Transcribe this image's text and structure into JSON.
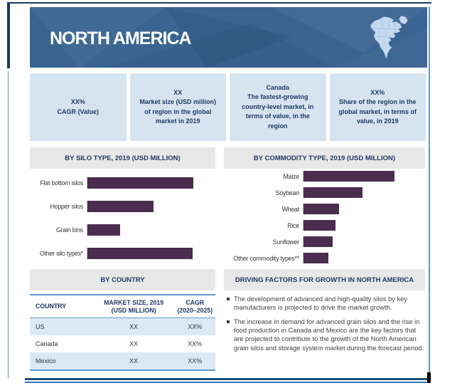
{
  "header": {
    "title": "NORTH AMERICA",
    "map_icon": "north-america-map"
  },
  "info_boxes": [
    {
      "line1": "XX%",
      "line2": "CAGR (Value)"
    },
    {
      "line1": "XX",
      "line2": "Market size (USD million) of region in the global market in 2019"
    },
    {
      "line1": "Canada",
      "line2": "The fastest-growing country-level market, in terms of value, in the region"
    },
    {
      "line1": "XX%",
      "line2": "Share of the region in the global market, in terms of value, in 2019"
    }
  ],
  "chart_data": [
    {
      "type": "bar",
      "orientation": "horizontal",
      "title": "BY SILO TYPE, 2019 (USD MILLION)",
      "categories": [
        "Flat bottom silos",
        "Hopper silos",
        "Grain bins",
        "Other silo types*"
      ],
      "values": [
        100,
        62,
        31,
        99
      ],
      "values_note": "actual values masked as XX in source; values are relative bar lengths (max = 100)",
      "bar_color": "#4A2D4F",
      "max_bar_pct": 83,
      "legend": "none",
      "grid": "off"
    },
    {
      "type": "bar",
      "orientation": "horizontal",
      "title": "BY COMMODITY TYPE, 2019 (USD MILLION)",
      "categories": [
        "Maize",
        "Soybean",
        "Wheat",
        "Rice",
        "Sunflower",
        "Other commodity types**"
      ],
      "values": [
        100,
        65,
        39,
        35,
        32,
        27
      ],
      "values_note": "actual values masked as XX in source; values are relative bar lengths (max = 100)",
      "bar_color": "#4A2D4F",
      "max_bar_pct": 75,
      "legend": "none",
      "grid": "off"
    }
  ],
  "country_section": {
    "title": "BY COUNTRY",
    "table": {
      "columns": [
        {
          "line1": "COUNTRY",
          "line2": ""
        },
        {
          "line1": "MARKET SIZE, 2019",
          "line2": "(USD MILLION)"
        },
        {
          "line1": "CAGR",
          "line2": "(2020–2025)"
        }
      ],
      "rows": [
        {
          "country": "US",
          "market_size": "XX",
          "cagr": "XX%"
        },
        {
          "country": "Canada",
          "market_size": "XX",
          "cagr": "XX%"
        },
        {
          "country": "Mexico",
          "market_size": "XX",
          "cagr": "XX%"
        }
      ]
    }
  },
  "driving_factors": {
    "title": "DRIVING FACTORS FOR GROWTH IN NORTH AMERICA",
    "bullets": [
      "The development of advanced and high-quality silos by key manufacturers is projected to drive the market growth.",
      "The increase in demand for advanced grain silos and the rise in food production in Canada and Mexico are the key factors that are projected to contribute to the growth of the North American grain silos and storage system market during the forecast period."
    ]
  },
  "colors": {
    "banner_blue": "#3A6491",
    "accent_navy": "#1F3864",
    "bar_purple": "#4A2D4F",
    "info_box_bg": "#D6E4F0",
    "section_header_bg": "#E8E8E8",
    "table_rule_blue": "#5B9BD5",
    "row_alt_bg": "#DCE9F5",
    "map_fill": "#C3D8EE"
  }
}
